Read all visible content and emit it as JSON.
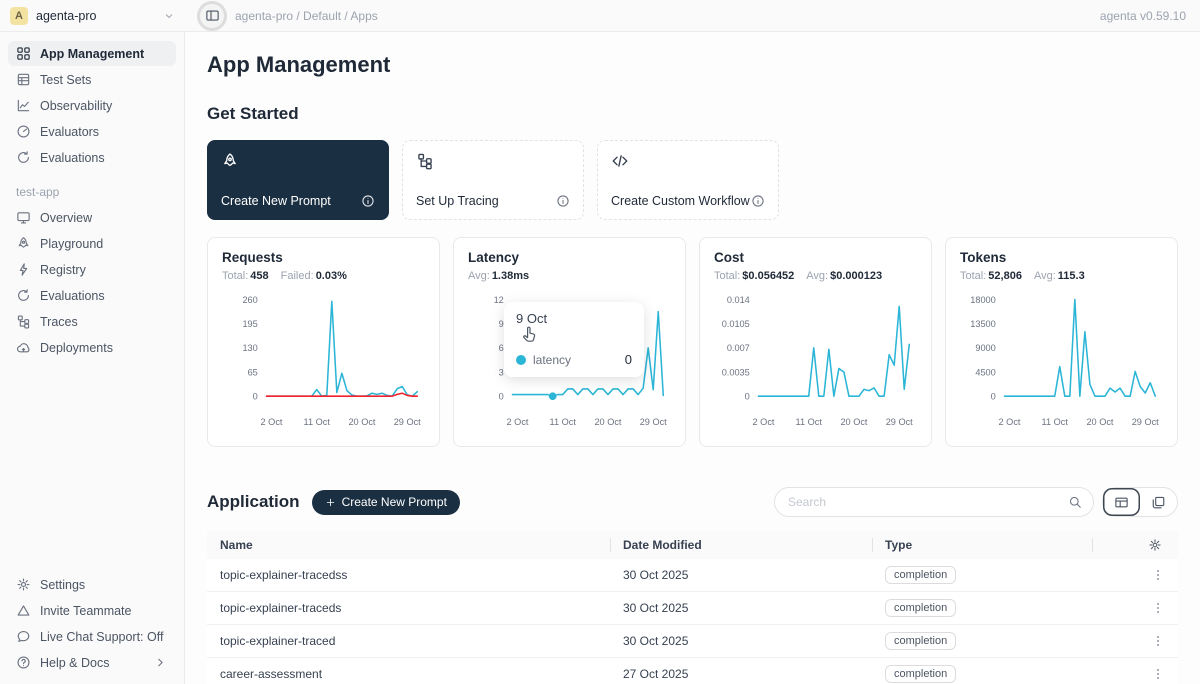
{
  "colors": {
    "accent": "#2bb5d6",
    "failed": "#f5222d",
    "dark_navy": "#1a2f42"
  },
  "topbar": {
    "workspace_initial": "A",
    "workspace_name": "agenta-pro",
    "breadcrumb": "agenta-pro / Default / Apps",
    "version": "agenta v0.59.10"
  },
  "sidebar": {
    "main_nav": [
      {
        "icon": "grid",
        "label": "App Management",
        "active": true
      },
      {
        "icon": "list",
        "label": "Test Sets"
      },
      {
        "icon": "chart",
        "label": "Observability"
      },
      {
        "icon": "gauge",
        "label": "Evaluators"
      },
      {
        "icon": "refresh",
        "label": "Evaluations"
      }
    ],
    "app_section_label": "test-app",
    "app_nav": [
      {
        "icon": "monitor",
        "label": "Overview"
      },
      {
        "icon": "rocket",
        "label": "Playground"
      },
      {
        "icon": "bolt",
        "label": "Registry"
      },
      {
        "icon": "refresh",
        "label": "Evaluations"
      },
      {
        "icon": "tree",
        "label": "Traces"
      },
      {
        "icon": "cloud",
        "label": "Deployments"
      }
    ],
    "footer_nav": [
      {
        "icon": "gear",
        "label": "Settings"
      },
      {
        "icon": "triangle",
        "label": "Invite Teammate"
      },
      {
        "icon": "chat",
        "label": "Live Chat Support: Off"
      },
      {
        "icon": "help",
        "label": "Help & Docs",
        "chevron": true
      }
    ]
  },
  "page": {
    "title": "App Management",
    "get_started_title": "Get Started",
    "cards": [
      {
        "icon": "rocket",
        "label": "Create New Prompt",
        "dark": true
      },
      {
        "icon": "tree",
        "label": "Set Up Tracing",
        "dark": false
      },
      {
        "icon": "code",
        "label": "Create Custom Workflow",
        "dark": false
      }
    ]
  },
  "chart_data": [
    {
      "type": "line",
      "name": "requests",
      "title": "Requests",
      "stats": [
        {
          "label": "Total:",
          "value": "458"
        },
        {
          "label": "Failed:",
          "value": "0.03%"
        }
      ],
      "x_tick_labels": [
        "2 Oct",
        "11 Oct",
        "20 Oct",
        "29 Oct"
      ],
      "x_tick_days": [
        2,
        11,
        20,
        29
      ],
      "x_range_days": [
        1,
        31
      ],
      "ylim": [
        0,
        260
      ],
      "y_tick_labels": [
        "260",
        "195",
        "130",
        "65",
        "0"
      ],
      "series": [
        {
          "name": "success",
          "color": "#2bb5d6",
          "values": [
            0,
            0,
            0,
            0,
            0,
            0,
            0,
            0,
            0,
            0,
            18,
            0,
            2,
            255,
            10,
            62,
            15,
            3,
            0,
            0,
            1,
            8,
            5,
            8,
            2,
            0,
            20,
            26,
            4,
            0,
            12
          ]
        },
        {
          "name": "failed",
          "color": "#f5222d",
          "values": [
            0,
            0,
            0,
            0,
            0,
            0,
            0,
            0,
            0,
            0,
            0,
            0,
            0,
            0,
            0,
            0,
            0,
            0,
            0,
            0,
            0,
            0,
            0,
            0,
            0,
            0,
            5,
            8,
            2,
            0,
            0
          ]
        }
      ]
    },
    {
      "type": "line",
      "name": "latency",
      "title": "Latency",
      "stats": [
        {
          "label": "Avg:",
          "value": "1.38ms"
        }
      ],
      "x_tick_labels": [
        "2 Oct",
        "11 Oct",
        "20 Oct",
        "29 Oct"
      ],
      "x_tick_days": [
        2,
        11,
        20,
        29
      ],
      "x_range_days": [
        1,
        31
      ],
      "ylim": [
        0,
        12
      ],
      "y_tick_labels": [
        "12",
        "9",
        "6",
        "3",
        "0"
      ],
      "series": [
        {
          "name": "latency",
          "color": "#2bb5d6",
          "values": [
            0.2,
            0.2,
            0.2,
            0.2,
            0.2,
            0.2,
            0.2,
            0.2,
            0,
            0.2,
            0.2,
            0.9,
            0.9,
            0.2,
            0.9,
            0.9,
            0.2,
            0.9,
            0.9,
            0.2,
            0.9,
            0.9,
            0.2,
            0.9,
            0.9,
            0.2,
            1,
            6,
            0.8,
            10.5,
            0.1
          ]
        }
      ],
      "marker": {
        "day": 9,
        "value": 0
      },
      "tooltip": {
        "date": "9 Oct",
        "series": "latency",
        "value": "0"
      }
    },
    {
      "type": "line",
      "name": "cost",
      "title": "Cost",
      "stats": [
        {
          "label": "Total:",
          "value": "$0.056452"
        },
        {
          "label": "Avg:",
          "value": "$0.000123"
        }
      ],
      "x_tick_labels": [
        "2 Oct",
        "11 Oct",
        "20 Oct",
        "29 Oct"
      ],
      "x_tick_days": [
        2,
        11,
        20,
        29
      ],
      "x_range_days": [
        1,
        31
      ],
      "ylim": [
        0,
        0.014
      ],
      "y_tick_labels": [
        "0.014",
        "0.0105",
        "0.007",
        "0.0035",
        "0"
      ],
      "series": [
        {
          "name": "cost",
          "color": "#2bb5d6",
          "values": [
            0,
            0,
            0,
            0,
            0,
            0,
            0,
            0,
            0,
            0,
            0,
            0.007,
            0,
            0,
            0.0068,
            0,
            0.004,
            0.0035,
            0,
            0,
            0,
            0.001,
            0.0008,
            0.0012,
            0,
            0,
            0.006,
            0.0045,
            0.013,
            0.001,
            0.0075
          ]
        }
      ]
    },
    {
      "type": "line",
      "name": "tokens",
      "title": "Tokens",
      "stats": [
        {
          "label": "Total:",
          "value": "52,806"
        },
        {
          "label": "Avg:",
          "value": "115.3"
        }
      ],
      "x_tick_labels": [
        "2 Oct",
        "11 Oct",
        "20 Oct",
        "29 Oct"
      ],
      "x_tick_days": [
        2,
        11,
        20,
        29
      ],
      "x_range_days": [
        1,
        31
      ],
      "ylim": [
        0,
        18000
      ],
      "y_tick_labels": [
        "18000",
        "13500",
        "9000",
        "4500",
        "0"
      ],
      "series": [
        {
          "name": "tokens",
          "color": "#2bb5d6",
          "values": [
            0,
            0,
            0,
            0,
            0,
            0,
            0,
            0,
            0,
            0,
            0,
            5500,
            0,
            0,
            18000,
            0,
            12000,
            2200,
            0,
            0,
            0,
            1500,
            800,
            1500,
            0,
            0,
            4600,
            1800,
            600,
            2500,
            0
          ]
        }
      ]
    }
  ],
  "application": {
    "title": "Application",
    "create_button_label": "Create New Prompt",
    "search_placeholder": "Search",
    "table": {
      "columns": [
        "Name",
        "Date Modified",
        "Type"
      ],
      "rows": [
        {
          "name": "topic-explainer-tracedss",
          "date_modified": "30 Oct 2025",
          "type": "completion"
        },
        {
          "name": "topic-explainer-traceds",
          "date_modified": "30 Oct 2025",
          "type": "completion"
        },
        {
          "name": "topic-explainer-traced",
          "date_modified": "30 Oct 2025",
          "type": "completion"
        },
        {
          "name": "career-assessment",
          "date_modified": "27 Oct 2025",
          "type": "completion"
        }
      ]
    }
  }
}
